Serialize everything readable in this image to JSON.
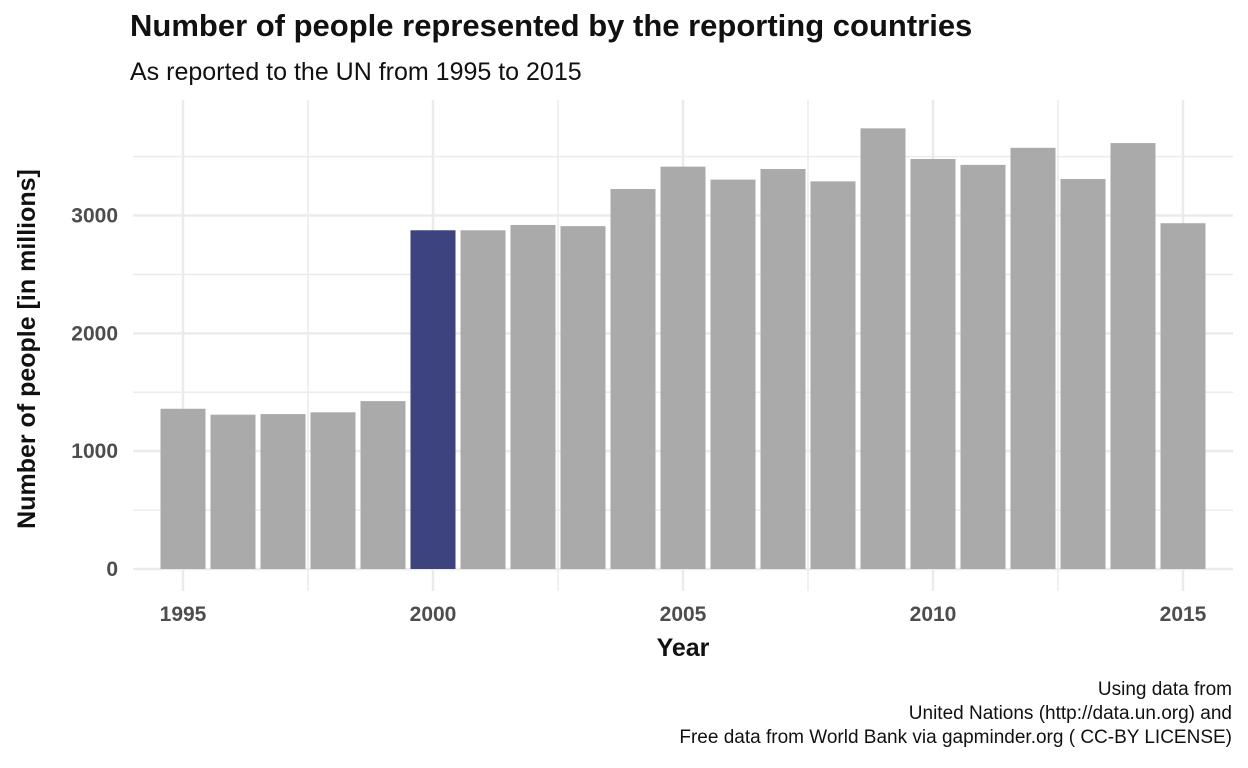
{
  "chart_data": {
    "type": "bar",
    "title": "Number of people represented by the reporting countries",
    "subtitle": "As reported to the UN from 1995 to 2015",
    "xlabel": "Year",
    "ylabel": "Number of people [in millions]",
    "x": [
      1995,
      1996,
      1997,
      1998,
      1999,
      2000,
      2001,
      2002,
      2003,
      2004,
      2005,
      2006,
      2007,
      2008,
      2009,
      2010,
      2011,
      2012,
      2013,
      2014,
      2015
    ],
    "values": [
      1360,
      1310,
      1315,
      1330,
      1425,
      2875,
      2875,
      2920,
      2910,
      3225,
      3415,
      3305,
      3395,
      3290,
      3740,
      3480,
      3430,
      3575,
      3310,
      3615,
      2935
    ],
    "highlight_x": 2000,
    "xticks": [
      1995,
      2000,
      2005,
      2010,
      2015
    ],
    "yticks": [
      0,
      1000,
      2000,
      3000
    ],
    "xlim": [
      1994,
      2016
    ],
    "ylim": [
      0,
      3760
    ],
    "grid": true,
    "legend": "none",
    "colors": {
      "bar": "#aaaaaa",
      "highlight": "#3c437e",
      "grid": "#ebebeb"
    },
    "caption": [
      "Using data from",
      "United Nations (http://data.un.org) and",
      "Free data from World Bank via gapminder.org ( CC-BY LICENSE)"
    ]
  }
}
